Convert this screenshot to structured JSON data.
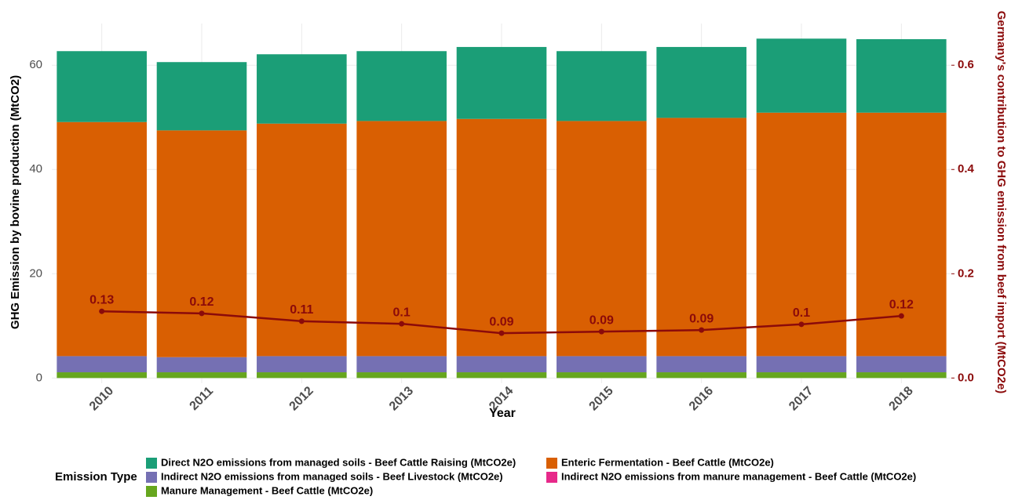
{
  "chart_data": {
    "type": "bar",
    "stacked": true,
    "x_label": "Year",
    "y_label": "GHG Emission by bovine production (MtCO2)",
    "y2_label": "Germany's contribution to GHG emission from beef import (MtCO2e)",
    "legend_title": "Emission Type",
    "legend_position": "bottom",
    "grid": true,
    "categories": [
      "2010",
      "2011",
      "2012",
      "2013",
      "2014",
      "2015",
      "2016",
      "2017",
      "2018"
    ],
    "ylim": [
      -1,
      68
    ],
    "yticks": [
      0,
      20,
      40,
      60
    ],
    "y2lim": [
      -0.01,
      0.68
    ],
    "y2ticks": [
      {
        "value": 0,
        "label": "0.0"
      },
      0.2,
      0.4,
      0.6
    ],
    "series": [
      {
        "name": "Direct N2O emissions from managed soils - Beef Cattle Raising (MtCO2e)",
        "color": "#1b9e77",
        "values": [
          13.6,
          13.1,
          13.3,
          13.4,
          13.8,
          13.4,
          13.6,
          14.2,
          14.1
        ]
      },
      {
        "name": "Enteric Fermentation - Beef Cattle (MtCO2e)",
        "color": "#d95f02",
        "values": [
          44.9,
          43.5,
          44.6,
          45.1,
          45.5,
          45.1,
          45.7,
          46.7,
          46.7
        ]
      },
      {
        "name": "Indirect N2O emissions from managed soils - Beef Livestock (MtCO2e)",
        "color": "#7570b3",
        "values": [
          3.1,
          2.9,
          3.1,
          3.1,
          3.1,
          3.1,
          3.1,
          3.1,
          3.1
        ]
      },
      {
        "name": "Indirect N2O emissions from manure management - Beef Cattle (MtCO2e)",
        "color": "#e7298a",
        "values": [
          0,
          0,
          0,
          0,
          0,
          0,
          0,
          0,
          0
        ]
      },
      {
        "name": "Manure Management - Beef Cattle (MtCO2e)",
        "color": "#66a61e",
        "values": [
          1.1,
          1.1,
          1.1,
          1.1,
          1.1,
          1.1,
          1.1,
          1.1,
          1.1
        ]
      }
    ],
    "line": {
      "type": "line",
      "axis": "y2",
      "color": "#8b0a0a",
      "values": [
        0.128,
        0.124,
        0.109,
        0.104,
        0.086,
        0.089,
        0.092,
        0.103,
        0.119
      ],
      "value_labels": [
        "0.13",
        "0.12",
        "0.11",
        "0.1",
        "0.09",
        "0.09",
        "0.09",
        "0.1",
        "0.12"
      ]
    }
  }
}
